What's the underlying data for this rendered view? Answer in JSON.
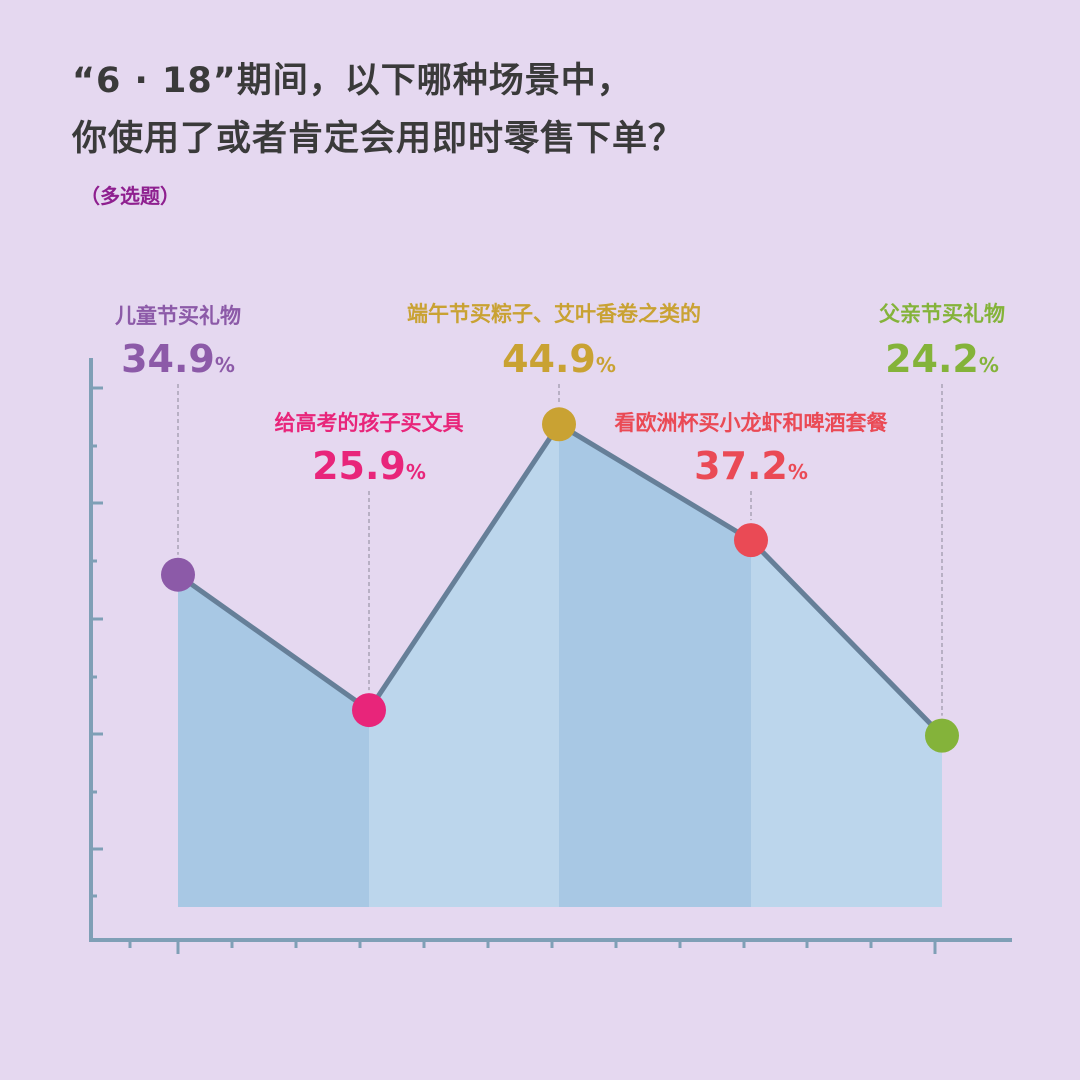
{
  "header": {
    "title_line1": "“6 · 18”期间，以下哪种场景中，",
    "title_line2": "你使用了或者肯定会用即时零售下单？",
    "subtitle": "（多选题）"
  },
  "chart_data": {
    "type": "area",
    "title": "“6 · 18”期间，以下哪种场景中，你使用了或者肯定会用即时零售下单？",
    "subtitle": "（多选题）",
    "unit": "%",
    "categories": [
      "儿童节买礼物",
      "给高考的孩子买文具",
      "端午节买粽子、艾叶香卷之类的",
      "看欧洲杯买小龙虾和啤酒套餐",
      "父亲节买礼物"
    ],
    "values": [
      34.9,
      25.9,
      44.9,
      37.2,
      24.2
    ],
    "value_labels": [
      "34.9",
      "25.9",
      "44.9",
      "37.2",
      "24.2"
    ],
    "colors": [
      "#8c5aa8",
      "#e8257a",
      "#c9a233",
      "#ea4a55",
      "#84b33a"
    ],
    "fill_colors": [
      "#a8c8e4",
      "#bcd6ec"
    ],
    "line_color": "#667f98",
    "axis_color": "#7f9fb6",
    "grid": false,
    "legend": "none"
  }
}
